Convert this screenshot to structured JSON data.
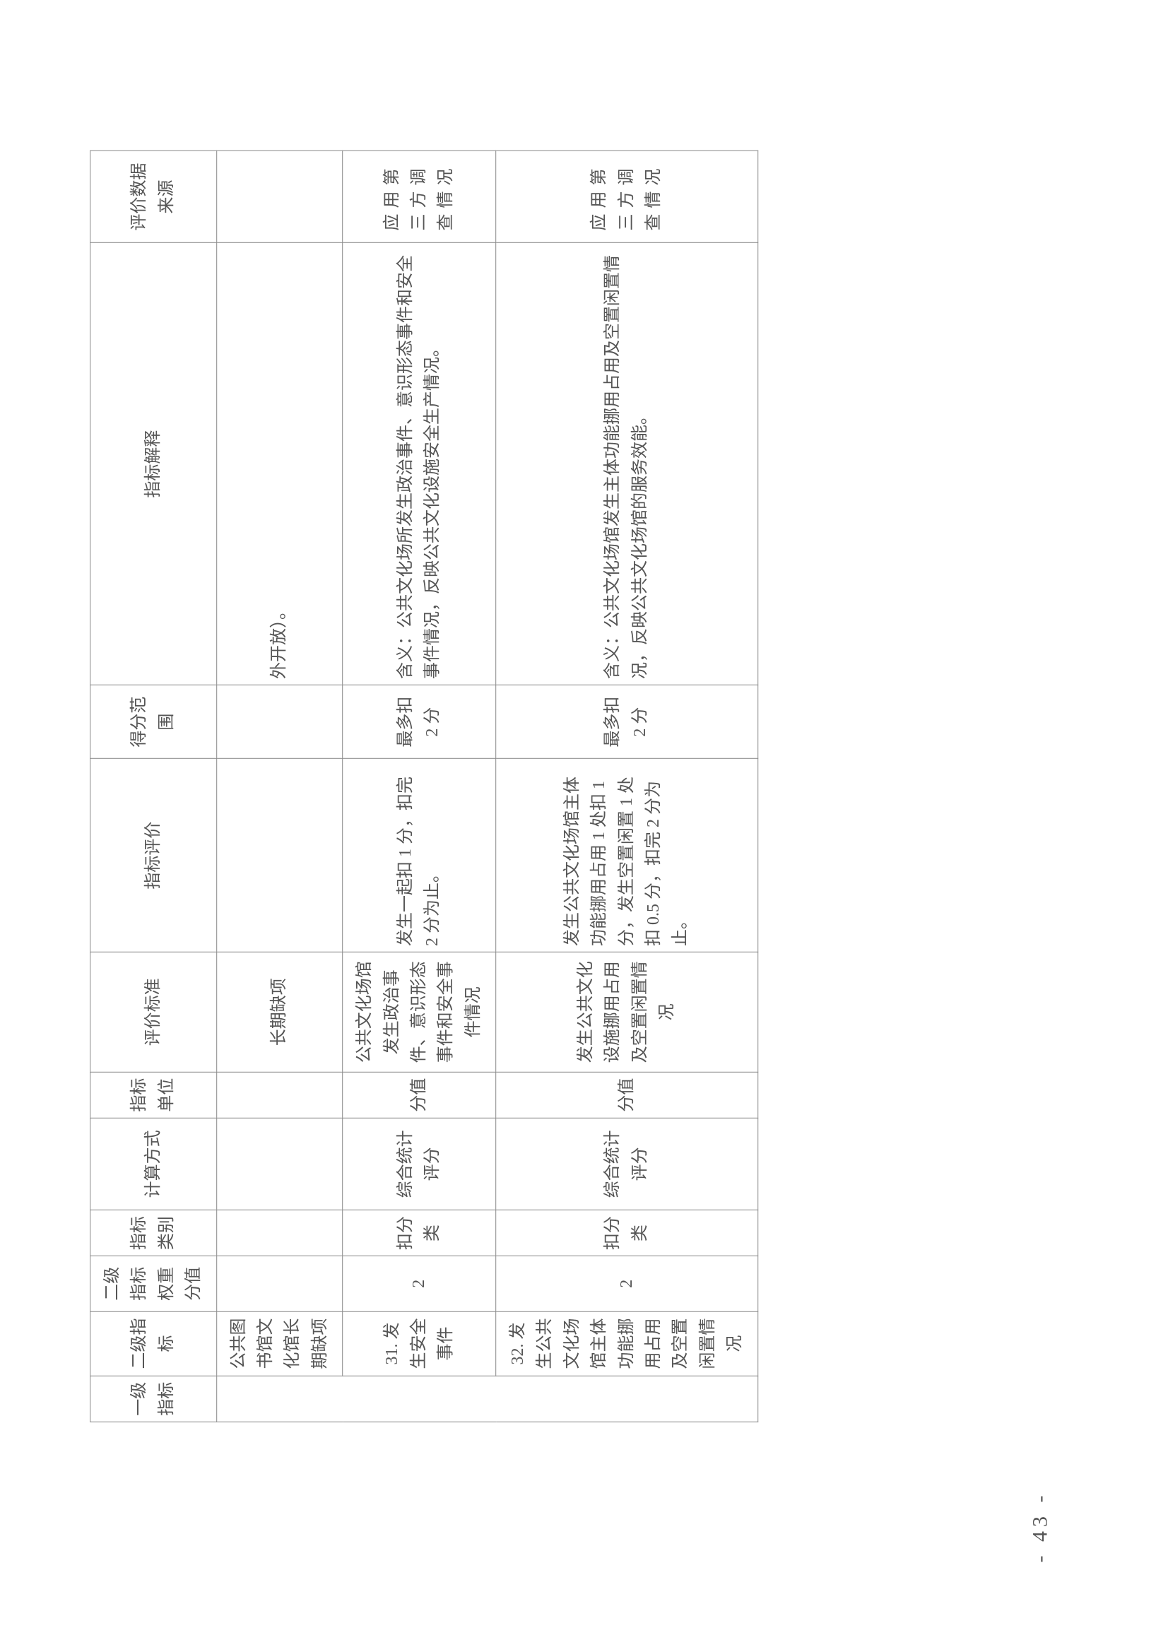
{
  "page_number": "- 43 -",
  "table": {
    "headers": {
      "col1": "一级指标",
      "col2": "二级指标",
      "col3": "二级指标权重分值",
      "col4": "指标类别",
      "col5": "计算方式",
      "col6": "指标单位",
      "col7": "评价标准",
      "col8": "指标评价",
      "col9": "得分范围",
      "col10": "指标解释",
      "col11": "评价数据来源"
    },
    "rows": [
      {
        "col1": "",
        "col2": "公共图书馆文化馆长期缺项",
        "col3": "",
        "col4": "",
        "col5": "",
        "col6": "",
        "col7": "长期缺项",
        "col8": "",
        "col9": "",
        "col10": "外开放）。",
        "col11": ""
      },
      {
        "col1": "",
        "col2": "31. 发生安全事件",
        "col3": "2",
        "col4": "扣分类",
        "col5": "综合统计评分",
        "col6": "分值",
        "col7": "公共文化场馆发生政治事件、意识形态事件和安全事件情况",
        "col8": "发生一起扣 1 分，扣完 2 分为止。",
        "col9": "最多扣 2 分",
        "col10": "含义：公共文化场所发生政治事件、意识形态事件和安全事件情况，反映公共文化设施安全生产情况。",
        "col11": "应用第三方调查情况"
      },
      {
        "col1": "",
        "col2": "32. 发生公共文化场馆主体功能挪用占用及空置闲置情况",
        "col3": "2",
        "col4": "扣分类",
        "col5": "综合统计评分",
        "col6": "分值",
        "col7": "发生公共文化设施挪用占用及空置闲置情况",
        "col8": "发生公共文化场馆主体功能挪用占用 1 处扣 1 分，发生空置闲置 1 处扣 0.5 分，扣完 2 分为止。",
        "col9": "最多扣 2 分",
        "col10": "含义：公共文化场馆发生主体功能挪用占用及空置闲置情况，反映公共文化场馆的服务效能。",
        "col11": "应用第三方调查情况"
      }
    ]
  }
}
